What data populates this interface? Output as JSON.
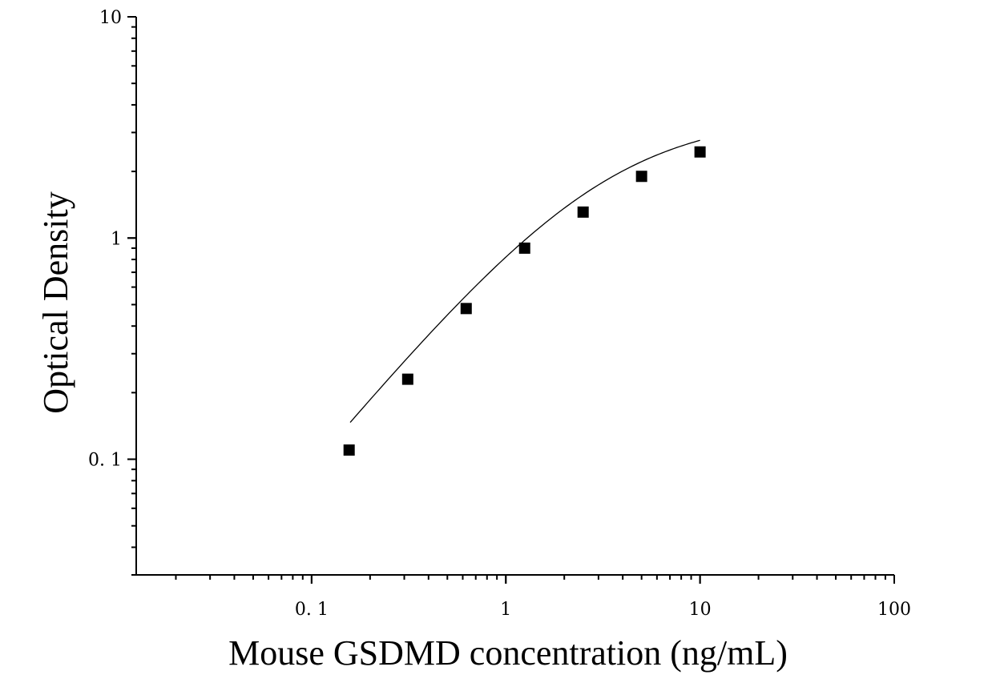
{
  "chart_data": {
    "type": "scatter",
    "xlabel": "Mouse GSDMD concentration (ng/mL)",
    "ylabel": "Optical Density",
    "x_scale": "log",
    "y_scale": "log",
    "xlim": [
      0.0125,
      100
    ],
    "ylim": [
      0.03,
      10
    ],
    "x_ticks": [
      0.1,
      1,
      10,
      100
    ],
    "x_tick_labels": [
      "0. 1",
      "1",
      "10",
      "100"
    ],
    "y_ticks": [
      0.1,
      1,
      10
    ],
    "y_tick_labels": [
      "0. 1",
      "1",
      "10"
    ],
    "grid": false,
    "marker": "square",
    "marker_color": "#000000",
    "line_color": "#000000",
    "points": [
      {
        "x": 0.156,
        "y": 0.11
      },
      {
        "x": 0.3125,
        "y": 0.23
      },
      {
        "x": 0.625,
        "y": 0.48
      },
      {
        "x": 1.25,
        "y": 0.9
      },
      {
        "x": 2.5,
        "y": 1.31
      },
      {
        "x": 5,
        "y": 1.9
      },
      {
        "x": 10,
        "y": 2.45
      }
    ],
    "fit_curve": "four-parameter logistic fit through the standard points"
  }
}
